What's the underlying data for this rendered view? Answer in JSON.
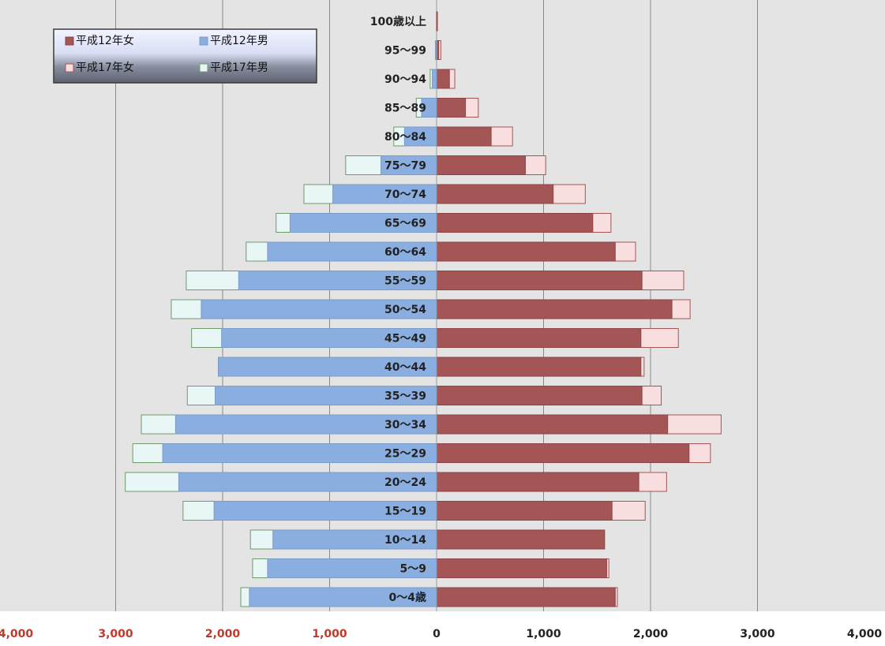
{
  "chart_data": {
    "type": "bar",
    "orientation": "horizontal",
    "layout": "population-pyramid",
    "categories": [
      "100歳以上",
      "95～99",
      "90～94",
      "85～89",
      "80～84",
      "75～79",
      "70～74",
      "65～69",
      "60～64",
      "55～59",
      "50～54",
      "45～49",
      "40～44",
      "35～39",
      "30～34",
      "25～29",
      "20～24",
      "15～19",
      "10～14",
      "5～9",
      "0～4歳"
    ],
    "series": [
      {
        "name": "平成12年女",
        "side": "right",
        "color": "#a45555",
        "values": [
          3,
          20,
          120,
          270,
          510,
          830,
          1090,
          1460,
          1670,
          1920,
          2200,
          1910,
          1910,
          1920,
          2160,
          2360,
          1890,
          1640,
          1570,
          1590,
          1670
        ]
      },
      {
        "name": "平成12年男",
        "side": "left",
        "color": "#8aaee0",
        "values": [
          0,
          5,
          40,
          140,
          300,
          520,
          970,
          1370,
          1580,
          1850,
          2200,
          2010,
          2040,
          2070,
          2440,
          2560,
          2410,
          2080,
          1530,
          1580,
          1750
        ]
      },
      {
        "name": "平成17年女",
        "side": "right",
        "color": "#f8dede",
        "values": [
          8,
          40,
          170,
          390,
          710,
          1020,
          1390,
          1630,
          1860,
          2310,
          2370,
          2260,
          1940,
          2100,
          2660,
          2560,
          2150,
          1950,
          1570,
          1610,
          1690
        ]
      },
      {
        "name": "平成17年男",
        "side": "left",
        "color": "#e8f7f6",
        "values": [
          0,
          10,
          60,
          190,
          400,
          850,
          1240,
          1500,
          1780,
          2340,
          2480,
          2290,
          2040,
          2330,
          2760,
          2840,
          2910,
          2370,
          1740,
          1720,
          1830
        ]
      }
    ],
    "xlim": [
      -4000,
      4000
    ],
    "x_ticks": [
      -4000,
      -3000,
      -2000,
      -1000,
      0,
      1000,
      2000,
      3000,
      4000
    ],
    "x_tick_labels": [
      "4,000",
      "3,000",
      "2,000",
      "1,000",
      "0",
      "1,000",
      "2,000",
      "3,000",
      "4,000"
    ],
    "x_tick_colors": {
      "negative": "#c0392b",
      "zero_and_positive": "#222222"
    },
    "gridlines": true,
    "background": "#e4e4e4",
    "legend_position": "top-left",
    "title": "",
    "xlabel": "",
    "ylabel": ""
  }
}
